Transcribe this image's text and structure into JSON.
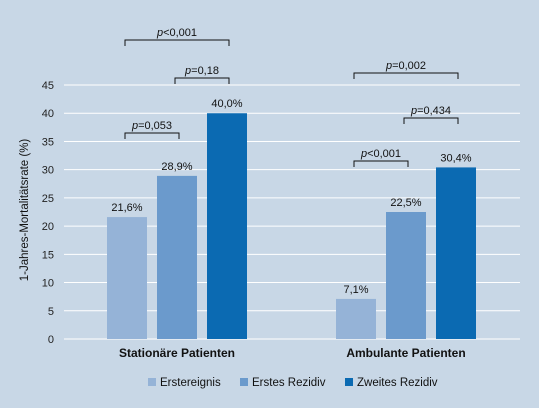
{
  "chart_data": {
    "type": "bar",
    "categories": [
      "Stationäre Patienten",
      "Ambulante Patienten"
    ],
    "series": [
      {
        "name": "Erstereignis",
        "values": [
          21.6,
          7.1
        ],
        "labels": [
          "21,6%",
          "7,1%"
        ],
        "color": "#95b3d7"
      },
      {
        "name": "Erstes Rezidiv",
        "values": [
          28.9,
          22.5
        ],
        "labels": [
          "28,9%",
          "22,5%"
        ],
        "color": "#6b9acc"
      },
      {
        "name": "Zweites Rezidiv",
        "values": [
          40.0,
          30.4
        ],
        "labels": [
          "40,0%",
          "30,4%"
        ],
        "color": "#0b6ab2"
      }
    ],
    "ylabel": "1-Jahres-Mortalitätsrate (%)",
    "ylim": [
      0,
      45
    ],
    "yticks": [
      0,
      5,
      10,
      15,
      20,
      25,
      30,
      35,
      40,
      45
    ],
    "grid": true,
    "legend": "bottom",
    "comparisons": [
      {
        "category": 0,
        "from": 0,
        "to": 2,
        "label": "p<0,001"
      },
      {
        "category": 0,
        "from": 1,
        "to": 2,
        "label": "p=0,18"
      },
      {
        "category": 0,
        "from": 0,
        "to": 1,
        "label": "p=0,053"
      },
      {
        "category": 1,
        "from": 0,
        "to": 2,
        "label": "p=0,002"
      },
      {
        "category": 1,
        "from": 1,
        "to": 2,
        "label": "p=0,434"
      },
      {
        "category": 1,
        "from": 0,
        "to": 1,
        "label": "p<0,001"
      }
    ],
    "background_color": "#c8d7e6",
    "grid_color": "#ffffff"
  }
}
